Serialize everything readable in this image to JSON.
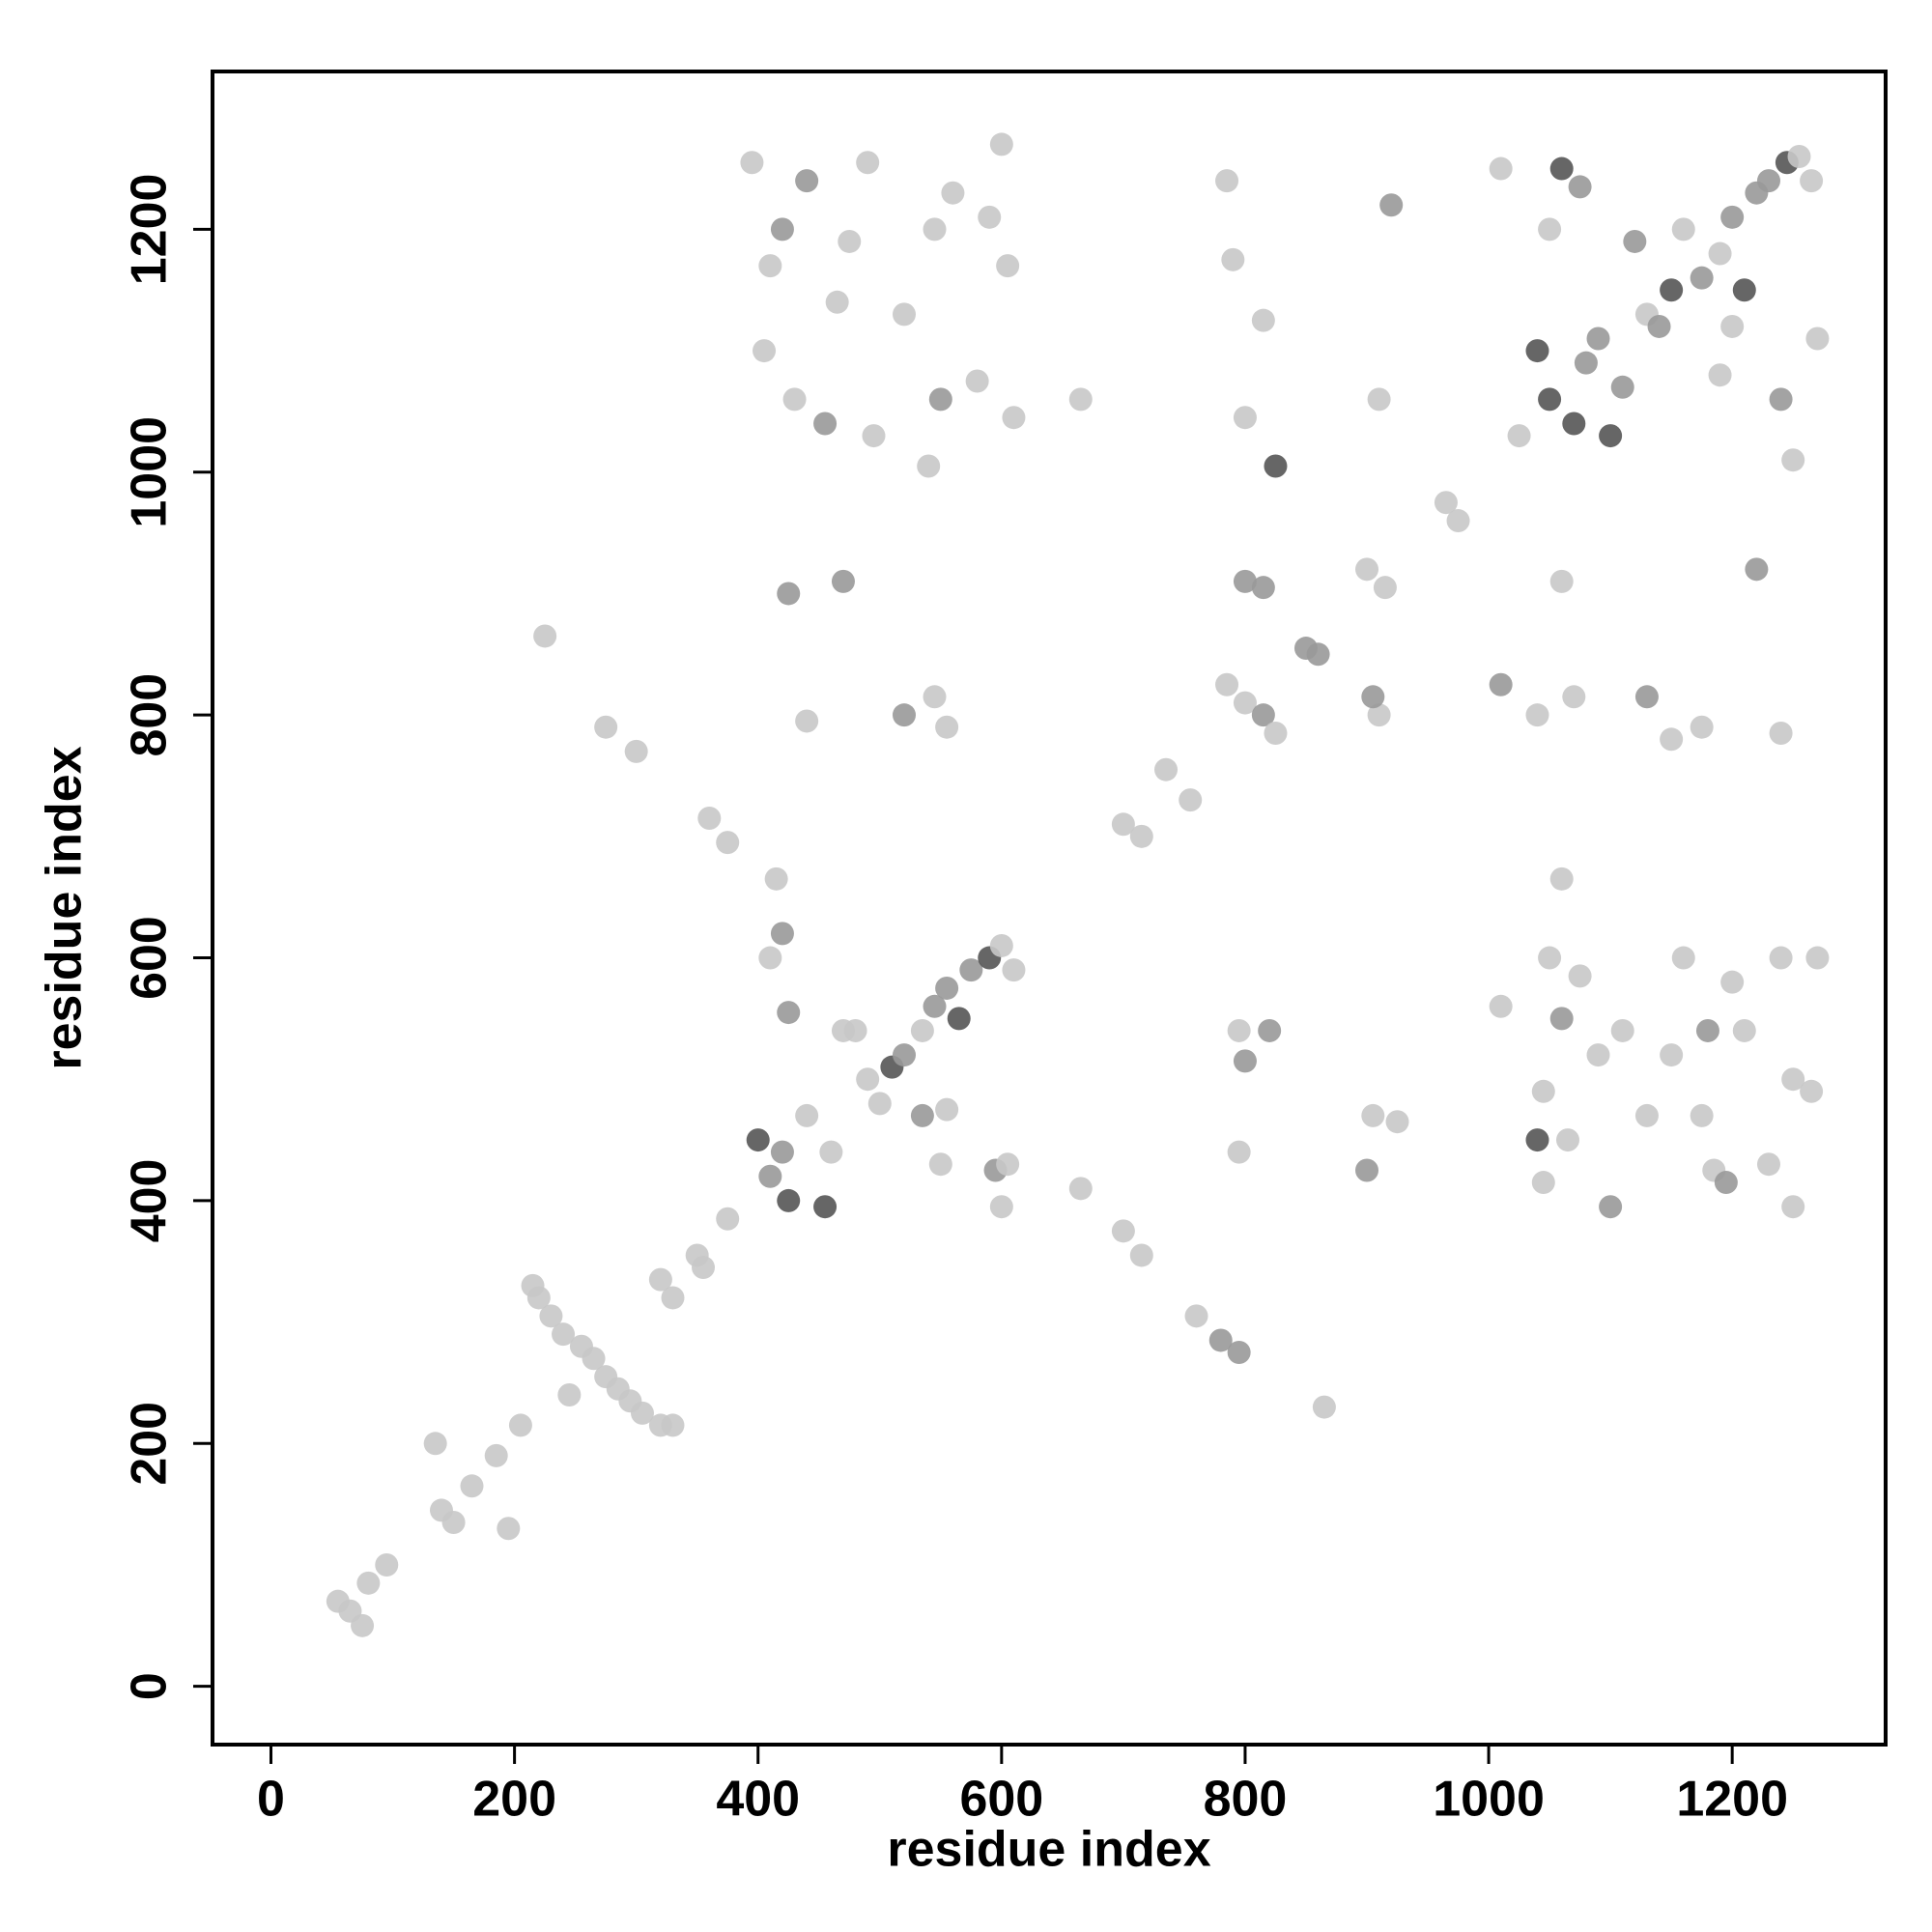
{
  "chart_data": {
    "type": "scatter",
    "xlabel": "residue index",
    "ylabel": "residue index",
    "xlim": [
      -48,
      1326
    ],
    "ylim": [
      -48,
      1330
    ],
    "xticks": [
      0,
      200,
      400,
      600,
      800,
      1000,
      1200
    ],
    "yticks": [
      0,
      200,
      400,
      600,
      800,
      1000,
      1200
    ],
    "x": [
      55,
      65,
      75,
      80,
      95,
      135,
      140,
      150,
      165,
      185,
      195,
      205,
      215,
      220,
      230,
      240,
      255,
      265,
      275,
      285,
      295,
      305,
      320,
      330,
      245,
      225,
      275,
      300,
      320,
      330,
      350,
      355,
      375,
      360,
      375,
      400,
      410,
      420,
      425,
      440,
      460,
      455,
      480,
      490,
      500,
      510,
      520,
      535,
      545,
      555,
      565,
      575,
      590,
      600,
      610,
      410,
      420,
      425,
      470,
      535,
      550,
      555,
      595,
      600,
      605,
      665,
      700,
      715,
      760,
      780,
      795,
      865,
      395,
      405,
      410,
      420,
      430,
      440,
      455,
      465,
      475,
      490,
      495,
      520,
      540,
      545,
      550,
      560,
      580,
      590,
      600,
      605,
      610,
      665,
      425,
      470,
      440,
      520,
      545,
      555,
      700,
      715,
      735,
      755,
      785,
      800,
      815,
      825,
      850,
      860,
      800,
      815,
      900,
      915,
      910,
      905,
      965,
      975,
      1010,
      1040,
      1070,
      1130,
      1150,
      1175,
      1240,
      1060,
      1220,
      785,
      790,
      815,
      800,
      825,
      910,
      920,
      1010,
      1040,
      1050,
      1060,
      1070,
      1080,
      1090,
      1100,
      1110,
      1120,
      1130,
      1140,
      1150,
      1160,
      1175,
      1190,
      1200,
      1210,
      1220,
      1230,
      1245,
      1255,
      1265,
      1240,
      1250,
      1270,
      1190,
      1200,
      1025,
      1050,
      1075,
      1010,
      1045,
      1050,
      1060,
      1040,
      1045,
      1065,
      1075,
      1090,
      1100,
      1110,
      1130,
      1150,
      1160,
      1175,
      1185,
      1195,
      1200,
      1210,
      1230,
      1240,
      1250,
      1250,
      1265,
      1270,
      1180,
      795,
      800,
      820,
      795,
      905,
      925,
      900,
      1060,
      415
    ],
    "values": [
      70,
      62,
      50,
      85,
      100,
      200,
      145,
      135,
      165,
      190,
      130,
      215,
      330,
      320,
      305,
      290,
      280,
      270,
      255,
      245,
      235,
      225,
      215,
      215,
      240,
      865,
      790,
      770,
      335,
      320,
      355,
      345,
      385,
      715,
      695,
      450,
      420,
      440,
      400,
      470,
      440,
      395,
      540,
      500,
      480,
      510,
      520,
      540,
      560,
      575,
      550,
      590,
      600,
      610,
      590,
      600,
      620,
      555,
      540,
      470,
      430,
      475,
      425,
      395,
      430,
      410,
      375,
      355,
      305,
      285,
      275,
      230,
      1255,
      1100,
      1170,
      1200,
      1060,
      1240,
      1040,
      1140,
      1190,
      1255,
      1030,
      1130,
      1005,
      1200,
      1060,
      1230,
      1075,
      1210,
      1270,
      1170,
      1045,
      1060,
      900,
      910,
      795,
      800,
      815,
      790,
      710,
      700,
      755,
      730,
      825,
      810,
      800,
      785,
      855,
      850,
      910,
      905,
      920,
      905,
      800,
      815,
      975,
      960,
      825,
      800,
      815,
      815,
      780,
      790,
      785,
      910,
      920,
      1240,
      1175,
      1125,
      1045,
      1005,
      1060,
      1220,
      1250,
      1100,
      1060,
      1250,
      1040,
      1090,
      1110,
      1030,
      1070,
      1190,
      1130,
      1120,
      1150,
      1200,
      1160,
      1180,
      1210,
      1150,
      1230,
      1240,
      1255,
      1260,
      1240,
      1060,
      1010,
      1110,
      1080,
      1120,
      1030,
      1200,
      1235,
      560,
      490,
      600,
      550,
      450,
      415,
      450,
      585,
      520,
      395,
      540,
      470,
      520,
      600,
      470,
      425,
      415,
      580,
      540,
      430,
      600,
      500,
      395,
      490,
      600,
      540,
      540,
      515,
      540,
      440,
      470,
      465,
      425,
      665,
      665
    ],
    "colors": [
      "#c8c8c8",
      "#c8c8c8",
      "#c8c8c8",
      "#c8c8c8",
      "#c8c8c8",
      "#c8c8c8",
      "#c8c8c8",
      "#c8c8c8",
      "#c8c8c8",
      "#c8c8c8",
      "#c8c8c8",
      "#c8c8c8",
      "#c8c8c8",
      "#c8c8c8",
      "#c8c8c8",
      "#c8c8c8",
      "#c8c8c8",
      "#c8c8c8",
      "#c8c8c8",
      "#c8c8c8",
      "#c8c8c8",
      "#c8c8c8",
      "#c8c8c8",
      "#c8c8c8",
      "#c8c8c8",
      "#c8c8c8",
      "#c8c8c8",
      "#c8c8c8",
      "#c8c8c8",
      "#c8c8c8",
      "#c8c8c8",
      "#c8c8c8",
      "#c8c8c8",
      "#c8c8c8",
      "#c8c8c8",
      "#555555",
      "#999999",
      "#999999",
      "#555555",
      "#c8c8c8",
      "#c8c8c8",
      "#555555",
      "#c8c8c8",
      "#c8c8c8",
      "#c8c8c8",
      "#555555",
      "#999999",
      "#c8c8c8",
      "#999999",
      "#999999",
      "#555555",
      "#999999",
      "#555555",
      "#c8c8c8",
      "#c8c8c8",
      "#c8c8c8",
      "#999999",
      "#999999",
      "#c8c8c8",
      "#999999",
      "#c8c8c8",
      "#c8c8c8",
      "#999999",
      "#c8c8c8",
      "#c8c8c8",
      "#c8c8c8",
      "#c8c8c8",
      "#c8c8c8",
      "#c8c8c8",
      "#999999",
      "#999999",
      "#c8c8c8",
      "#c8c8c8",
      "#c8c8c8",
      "#c8c8c8",
      "#999999",
      "#c8c8c8",
      "#999999",
      "#999999",
      "#c8c8c8",
      "#c8c8c8",
      "#c8c8c8",
      "#c8c8c8",
      "#c8c8c8",
      "#c8c8c8",
      "#c8c8c8",
      "#999999",
      "#c8c8c8",
      "#c8c8c8",
      "#c8c8c8",
      "#c8c8c8",
      "#c8c8c8",
      "#c8c8c8",
      "#c8c8c8",
      "#999999",
      "#999999",
      "#c8c8c8",
      "#999999",
      "#c8c8c8",
      "#c8c8c8",
      "#c8c8c8",
      "#c8c8c8",
      "#c8c8c8",
      "#c8c8c8",
      "#c8c8c8",
      "#c8c8c8",
      "#999999",
      "#c8c8c8",
      "#999999",
      "#999999",
      "#999999",
      "#999999",
      "#c8c8c8",
      "#c8c8c8",
      "#c8c8c8",
      "#999999",
      "#c8c8c8",
      "#c8c8c8",
      "#999999",
      "#c8c8c8",
      "#c8c8c8",
      "#999999",
      "#c8c8c8",
      "#c8c8c8",
      "#c8c8c8",
      "#c8c8c8",
      "#999999",
      "#c8c8c8",
      "#c8c8c8",
      "#c8c8c8",
      "#c8c8c8",
      "#555555",
      "#c8c8c8",
      "#999999",
      "#c8c8c8",
      "#555555",
      "#555555",
      "#555555",
      "#555555",
      "#999999",
      "#999999",
      "#555555",
      "#999999",
      "#999999",
      "#c8c8c8",
      "#999999",
      "#555555",
      "#c8c8c8",
      "#999999",
      "#c8c8c8",
      "#999999",
      "#555555",
      "#999999",
      "#999999",
      "#555555",
      "#c8c8c8",
      "#c8c8c8",
      "#999999",
      "#c8c8c8",
      "#c8c8c8",
      "#c8c8c8",
      "#c8c8c8",
      "#c8c8c8",
      "#c8c8c8",
      "#999999",
      "#c8c8c8",
      "#c8c8c8",
      "#c8c8c8",
      "#999999",
      "#555555",
      "#c8c8c8",
      "#c8c8c8",
      "#c8c8c8",
      "#c8c8c8",
      "#999999",
      "#c8c8c8",
      "#c8c8c8",
      "#c8c8c8",
      "#c8c8c8",
      "#c8c8c8",
      "#c8c8c8",
      "#999999",
      "#c8c8c8",
      "#c8c8c8",
      "#c8c8c8",
      "#c8c8c8",
      "#c8c8c8",
      "#c8c8c8",
      "#c8c8c8",
      "#c8c8c8",
      "#999999",
      "#c8c8c8",
      "#999999",
      "#999999",
      "#c8c8c8",
      "#c8c8c8",
      "#c8c8c8",
      "#999999",
      "#c8c8c8",
      "#c8c8c8"
    ]
  }
}
